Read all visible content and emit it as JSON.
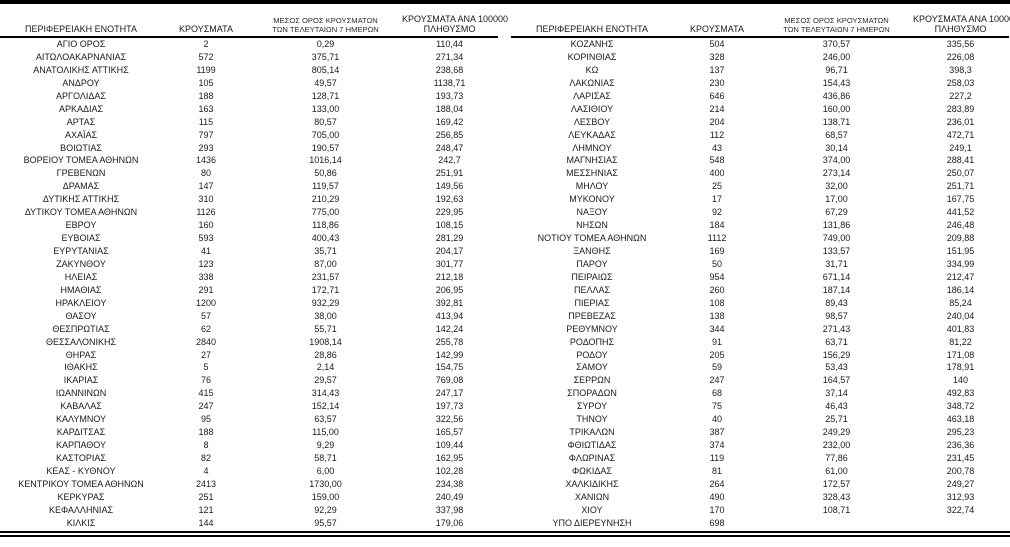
{
  "page": {
    "background_color": "#ffffff",
    "rule_color": "#000000",
    "text_color": "#1a1a1a",
    "language": "el",
    "description_labels": {
      "table_kind": "table"
    }
  },
  "columns": [
    {
      "lines": [
        "ΠΕΡΙΦΕΡΕΙΑΚΗ ΕΝΟΤΗΤΑ"
      ],
      "small": false
    },
    {
      "lines": [
        "ΚΡΟΥΣΜΑΤΑ"
      ],
      "small": false
    },
    {
      "lines": [
        "ΜΕΣΟΣ ΟΡΟΣ ΚΡΟΥΣΜΑΤΩΝ",
        "ΤΩΝ ΤΕΛΕΥΤΑΙΩΝ 7 ΗΜΕΡΩΝ"
      ],
      "small": true
    },
    {
      "lines": [
        "ΚΡΟΥΣΜΑΤΑ ΑΝΑ 100000",
        "ΠΛΗΘΥΣΜΟ"
      ],
      "small": false
    }
  ],
  "tables": [
    {
      "id": "left",
      "rows": [
        [
          "ΑΓΙΟ ΟΡΟΣ",
          "2",
          "0,29",
          "110,44"
        ],
        [
          "ΑΙΤΩΛΟΑΚΑΡΝΑΝΙΑΣ",
          "572",
          "375,71",
          "271,34"
        ],
        [
          "ΑΝΑΤΟΛΙΚΗΣ ΑΤΤΙΚΗΣ",
          "1199",
          "805,14",
          "238,68"
        ],
        [
          "ΑΝΔΡΟΥ",
          "105",
          "49,57",
          "1138,71"
        ],
        [
          "ΑΡΓΟΛΙΔΑΣ",
          "188",
          "128,71",
          "193,73"
        ],
        [
          "ΑΡΚΑΔΙΑΣ",
          "163",
          "133,00",
          "188,04"
        ],
        [
          "ΑΡΤΑΣ",
          "115",
          "80,57",
          "169,42"
        ],
        [
          "ΑΧΑΪΑΣ",
          "797",
          "705,00",
          "256,85"
        ],
        [
          "ΒΟΙΩΤΙΑΣ",
          "293",
          "190,57",
          "248,47"
        ],
        [
          "ΒΟΡΕΙΟΥ ΤΟΜΕΑ ΑΘΗΝΩΝ",
          "1436",
          "1016,14",
          "242,7"
        ],
        [
          "ΓΡΕΒΕΝΩΝ",
          "80",
          "50,86",
          "251,91"
        ],
        [
          "ΔΡΑΜΑΣ",
          "147",
          "119,57",
          "149,56"
        ],
        [
          "ΔΥΤΙΚΗΣ ΑΤΤΙΚΗΣ",
          "310",
          "210,29",
          "192,63"
        ],
        [
          "ΔΥΤΙΚΟΥ ΤΟΜΕΑ ΑΘΗΝΩΝ",
          "1126",
          "775,00",
          "229,95"
        ],
        [
          "ΕΒΡΟΥ",
          "160",
          "118,86",
          "108,15"
        ],
        [
          "ΕΥΒΟΙΑΣ",
          "593",
          "400,43",
          "281,29"
        ],
        [
          "ΕΥΡΥΤΑΝΙΑΣ",
          "41",
          "35,71",
          "204,17"
        ],
        [
          "ΖΑΚΥΝΘΟΥ",
          "123",
          "87,00",
          "301,77"
        ],
        [
          "ΗΛΕΙΑΣ",
          "338",
          "231,57",
          "212,18"
        ],
        [
          "ΗΜΑΘΙΑΣ",
          "291",
          "172,71",
          "206,95"
        ],
        [
          "ΗΡΑΚΛΕΙΟΥ",
          "1200",
          "932,29",
          "392,81"
        ],
        [
          "ΘΑΣΟΥ",
          "57",
          "38,00",
          "413,94"
        ],
        [
          "ΘΕΣΠΡΩΤΙΑΣ",
          "62",
          "55,71",
          "142,24"
        ],
        [
          "ΘΕΣΣΑΛΟΝΙΚΗΣ",
          "2840",
          "1908,14",
          "255,78"
        ],
        [
          "ΘΗΡΑΣ",
          "27",
          "28,86",
          "142,99"
        ],
        [
          "ΙΘΑΚΗΣ",
          "5",
          "2,14",
          "154,75"
        ],
        [
          "ΙΚΑΡΙΑΣ",
          "76",
          "29,57",
          "769,08"
        ],
        [
          "ΙΩΑΝΝΙΝΩΝ",
          "415",
          "314,43",
          "247,17"
        ],
        [
          "ΚΑΒΑΛΑΣ",
          "247",
          "152,14",
          "197,73"
        ],
        [
          "ΚΑΛΥΜΝΟΥ",
          "95",
          "63,57",
          "322,56"
        ],
        [
          "ΚΑΡΔΙΤΣΑΣ",
          "188",
          "115,00",
          "165,57"
        ],
        [
          "ΚΑΡΠΑΘΟΥ",
          "8",
          "9,29",
          "109,44"
        ],
        [
          "ΚΑΣΤΟΡΙΑΣ",
          "82",
          "58,71",
          "162,95"
        ],
        [
          "ΚΕΑΣ - ΚΥΘΝΟΥ",
          "4",
          "6,00",
          "102,28"
        ],
        [
          "ΚΕΝΤΡΙΚΟΥ ΤΟΜΕΑ ΑΘΗΝΩΝ",
          "2413",
          "1730,00",
          "234,38"
        ],
        [
          "ΚΕΡΚΥΡΑΣ",
          "251",
          "159,00",
          "240,49"
        ],
        [
          "ΚΕΦΑΛΛΗΝΙΑΣ",
          "121",
          "92,29",
          "337,98"
        ],
        [
          "ΚΙΛΚΙΣ",
          "144",
          "95,57",
          "179,06"
        ]
      ]
    },
    {
      "id": "right",
      "rows": [
        [
          "ΚΟΖΑΝΗΣ",
          "504",
          "370,57",
          "335,56"
        ],
        [
          "ΚΟΡΙΝΘΙΑΣ",
          "328",
          "246,00",
          "226,08"
        ],
        [
          "ΚΩ",
          "137",
          "96,71",
          "398,3"
        ],
        [
          "ΛΑΚΩΝΙΑΣ",
          "230",
          "154,43",
          "258,03"
        ],
        [
          "ΛΑΡΙΣΑΣ",
          "646",
          "436,86",
          "227,2"
        ],
        [
          "ΛΑΣΙΘΙΟΥ",
          "214",
          "160,00",
          "283,89"
        ],
        [
          "ΛΕΣΒΟΥ",
          "204",
          "138,71",
          "236,01"
        ],
        [
          "ΛΕΥΚΑΔΑΣ",
          "112",
          "68,57",
          "472,71"
        ],
        [
          "ΛΗΜΝΟΥ",
          "43",
          "30,14",
          "249,1"
        ],
        [
          "ΜΑΓΝΗΣΙΑΣ",
          "548",
          "374,00",
          "288,41"
        ],
        [
          "ΜΕΣΣΗΝΙΑΣ",
          "400",
          "273,14",
          "250,07"
        ],
        [
          "ΜΗΛΟΥ",
          "25",
          "32,00",
          "251,71"
        ],
        [
          "ΜΥΚΟΝΟΥ",
          "17",
          "17,00",
          "167,75"
        ],
        [
          "ΝΑΞΟΥ",
          "92",
          "67,29",
          "441,52"
        ],
        [
          "ΝΗΣΩΝ",
          "184",
          "131,86",
          "246,48"
        ],
        [
          "ΝΟΤΙΟΥ ΤΟΜΕΑ ΑΘΗΝΩΝ",
          "1112",
          "749,00",
          "209,88"
        ],
        [
          "ΞΑΝΘΗΣ",
          "169",
          "133,57",
          "151,95"
        ],
        [
          "ΠΑΡΟΥ",
          "50",
          "31,71",
          "334,99"
        ],
        [
          "ΠΕΙΡΑΙΩΣ",
          "954",
          "671,14",
          "212,47"
        ],
        [
          "ΠΕΛΛΑΣ",
          "260",
          "187,14",
          "186,14"
        ],
        [
          "ΠΙΕΡΙΑΣ",
          "108",
          "89,43",
          "85,24"
        ],
        [
          "ΠΡΕΒΕΖΑΣ",
          "138",
          "98,57",
          "240,04"
        ],
        [
          "ΡΕΘΥΜΝΟΥ",
          "344",
          "271,43",
          "401,83"
        ],
        [
          "ΡΟΔΟΠΗΣ",
          "91",
          "63,71",
          "81,22"
        ],
        [
          "ΡΟΔΟΥ",
          "205",
          "156,29",
          "171,08"
        ],
        [
          "ΣΑΜΟΥ",
          "59",
          "53,43",
          "178,91"
        ],
        [
          "ΣΕΡΡΩΝ",
          "247",
          "164,57",
          "140"
        ],
        [
          "ΣΠΟΡΑΔΩΝ",
          "68",
          "37,14",
          "492,83"
        ],
        [
          "ΣΥΡΟΥ",
          "75",
          "46,43",
          "348,72"
        ],
        [
          "ΤΗΝΟΥ",
          "40",
          "25,71",
          "463,18"
        ],
        [
          "ΤΡΙΚΑΛΩΝ",
          "387",
          "249,29",
          "295,23"
        ],
        [
          "ΦΘΙΩΤΙΔΑΣ",
          "374",
          "232,00",
          "236,36"
        ],
        [
          "ΦΛΩΡΙΝΑΣ",
          "119",
          "77,86",
          "231,45"
        ],
        [
          "ΦΩΚΙΔΑΣ",
          "81",
          "61,00",
          "200,78"
        ],
        [
          "ΧΑΛΚΙΔΙΚΗΣ",
          "264",
          "172,57",
          "249,27"
        ],
        [
          "ΧΑΝΙΩΝ",
          "490",
          "328,43",
          "312,93"
        ],
        [
          "ΧΙΟΥ",
          "170",
          "108,71",
          "322,74"
        ],
        [
          "ΥΠΟ ΔΙΕΡΕΥΝΗΣΗ",
          "698",
          "",
          ""
        ]
      ]
    }
  ]
}
